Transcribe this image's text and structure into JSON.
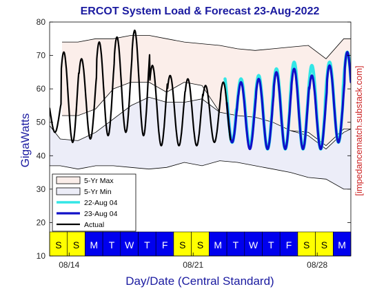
{
  "colors": {
    "max_band_fill": "#fbeeea",
    "min_band_fill": "#ecedf8",
    "forecast_22": "#33e6e6",
    "forecast_23": "#1010c8",
    "actual": "#000000",
    "title": "#1a1aa0",
    "weekend_strip": "#ffff00",
    "weekday_strip": "#0000ee",
    "watermark": "#cc2222"
  },
  "chart_data": {
    "type": "line",
    "title": "ERCOT System Load & Forecast 23-Aug-2022",
    "xlabel": "Day/Date (Central Standard)",
    "ylabel": "GigaWatts",
    "ylim": [
      10,
      80
    ],
    "yticks": [
      10,
      20,
      30,
      40,
      50,
      60,
      70,
      80
    ],
    "xlim_days": [
      12.9,
      29.9
    ],
    "xticks": [
      {
        "day": 14,
        "label": "08/14"
      },
      {
        "day": 21,
        "label": "08/21"
      },
      {
        "day": 28,
        "label": "08/28"
      }
    ],
    "grid": false,
    "legend_position": "bottom-left",
    "watermark": "[impedancematch.substack.com]",
    "day_strip": [
      {
        "label": "S",
        "weekend": true
      },
      {
        "label": "S",
        "weekend": true
      },
      {
        "label": "M",
        "weekend": false
      },
      {
        "label": "T",
        "weekend": false
      },
      {
        "label": "W",
        "weekend": false
      },
      {
        "label": "T",
        "weekend": false
      },
      {
        "label": "F",
        "weekend": false
      },
      {
        "label": "S",
        "weekend": true
      },
      {
        "label": "S",
        "weekend": true
      },
      {
        "label": "M",
        "weekend": false
      },
      {
        "label": "T",
        "weekend": false
      },
      {
        "label": "W",
        "weekend": false
      },
      {
        "label": "T",
        "weekend": false
      },
      {
        "label": "F",
        "weekend": false
      },
      {
        "label": "S",
        "weekend": true
      },
      {
        "label": "S",
        "weekend": true
      },
      {
        "label": "M",
        "weekend": false
      }
    ],
    "envelope_5yr_max": {
      "name": "5-Yr Max",
      "upper": {
        "x": [
          13.6,
          14.5,
          15.5,
          16.5,
          17.5,
          18.5,
          19.5,
          20.5,
          21.5,
          22.5,
          23.5,
          24.5,
          25.5,
          26.5,
          27.5,
          28.5,
          29.5,
          29.9
        ],
        "y": [
          74,
          74,
          75,
          75,
          76,
          76,
          75,
          74,
          73.5,
          73,
          72,
          71.5,
          72,
          72.5,
          73,
          69,
          75,
          75
        ]
      },
      "lower": {
        "x": [
          13.6,
          14.5,
          15.5,
          16.5,
          17.5,
          18.5,
          19.5,
          20.5,
          21.5,
          22.5,
          23.5,
          24.5,
          25.5,
          26.5,
          27.5,
          28.5,
          29.5,
          29.9
        ],
        "y": [
          52,
          52,
          54,
          60,
          62,
          62,
          59,
          62,
          61,
          53,
          50,
          49,
          48,
          47.5,
          47,
          43,
          48,
          48
        ]
      }
    },
    "envelope_5yr_min": {
      "name": "5-Yr Min",
      "upper": {
        "x": [
          12.9,
          13.5,
          14.5,
          15.5,
          16.5,
          17.5,
          18.5,
          19.5,
          20.5,
          21.5,
          22.5,
          23.5,
          24.5,
          25.5,
          26.5,
          27.5,
          28.5,
          29.5,
          29.9
        ],
        "y": [
          49,
          45,
          44.5,
          47,
          51,
          55,
          57.5,
          56,
          56,
          57,
          53,
          52,
          51.5,
          50,
          47.5,
          46,
          42,
          47,
          48
        ]
      },
      "lower": {
        "x": [
          12.9,
          13.5,
          14.5,
          15.5,
          16.5,
          17.5,
          18.5,
          19.5,
          20.5,
          21.5,
          22.5,
          23.5,
          24.5,
          25.5,
          26.5,
          27.5,
          28.5,
          29.5,
          29.9
        ],
        "y": [
          37,
          37,
          36,
          37,
          37,
          36.5,
          36,
          36.5,
          38,
          37,
          38.5,
          38,
          37,
          36,
          35,
          33.5,
          33,
          30,
          30
        ]
      }
    },
    "series": [
      {
        "name": "Actual",
        "x_start": 12.9,
        "x_end": 23.1,
        "peaks": [
          58,
          71,
          69,
          74,
          75.5,
          77.5,
          67,
          64,
          63,
          61,
          62
        ],
        "troughs": [
          47,
          44,
          45,
          46,
          47,
          46,
          43,
          43,
          43,
          44,
          43
        ]
      },
      {
        "name": "22-Aug 04",
        "x_start": 22.8,
        "x_end": 29.9,
        "peaks": [
          65,
          63,
          64,
          66,
          68,
          67,
          68,
          71
        ],
        "troughs": [
          44,
          43,
          42,
          42,
          42,
          42,
          44,
          47
        ]
      },
      {
        "name": "23-Aug 04",
        "x_start": 22.9,
        "x_end": 29.9,
        "peaks": [
          62,
          62,
          63,
          65,
          66,
          64,
          67,
          71
        ],
        "troughs": [
          44,
          42,
          42,
          42,
          42,
          42,
          44,
          45
        ]
      }
    ]
  }
}
